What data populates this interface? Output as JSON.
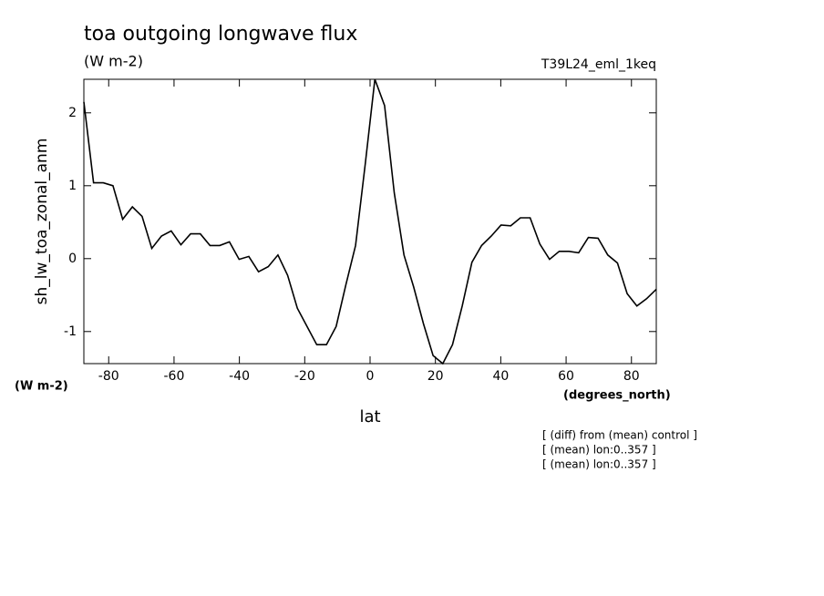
{
  "chart_data": {
    "type": "line",
    "title": "toa outgoing longwave flux",
    "subtitle": "(W m-2)",
    "experiment": "T39L24_eml_1keq",
    "y_label": "sh_lw_toa_zonal_anm",
    "y_units": "(W m-2)",
    "x_label": "lat",
    "x_units": "(degrees_north)",
    "notes": [
      "[ (diff) from (mean) control ]",
      "[ (mean) lon:0..357 ]",
      "[ (mean) lon:0..357 ]"
    ],
    "color": "#000000",
    "x": [
      -87.6,
      -84.63,
      -81.66,
      -78.69,
      -75.72,
      -72.75,
      -69.78,
      -66.81,
      -63.84,
      -60.87,
      -57.9,
      -54.93,
      -51.96,
      -48.99,
      -46.02,
      -43.05,
      -40.08,
      -37.11,
      -34.14,
      -31.17,
      -28.2,
      -25.23,
      -22.26,
      -19.29,
      -16.32,
      -13.35,
      -10.38,
      -7.41,
      -4.44,
      -1.47,
      1.47,
      4.44,
      7.41,
      10.38,
      13.35,
      16.32,
      19.29,
      22.26,
      25.23,
      28.2,
      31.17,
      34.14,
      37.11,
      40.08,
      43.05,
      46.02,
      48.99,
      51.96,
      54.93,
      57.9,
      60.87,
      63.84,
      66.81,
      69.78,
      72.75,
      75.72,
      78.69,
      81.66,
      84.63,
      87.6
    ],
    "values": [
      2.15,
      1.04,
      1.04,
      1.0,
      0.54,
      0.71,
      0.58,
      0.14,
      0.31,
      0.38,
      0.19,
      0.34,
      0.34,
      0.18,
      0.18,
      0.23,
      -0.01,
      0.03,
      -0.18,
      -0.11,
      0.05,
      -0.23,
      -0.68,
      -0.93,
      -1.18,
      -1.18,
      -0.93,
      -0.36,
      0.18,
      1.3,
      2.46,
      2.1,
      0.9,
      0.05,
      -0.39,
      -0.89,
      -1.33,
      -1.44,
      -1.18,
      -0.65,
      -0.05,
      0.18,
      0.31,
      0.46,
      0.45,
      0.56,
      0.56,
      0.2,
      -0.01,
      0.1,
      0.1,
      0.08,
      0.29,
      0.28,
      0.05,
      -0.06,
      -0.48,
      -0.65,
      -0.55,
      -0.42
    ],
    "xlim": [
      -87.6,
      87.6
    ],
    "ylim": [
      -1.44,
      2.46
    ],
    "xticks": [
      -80,
      -60,
      -40,
      -20,
      0,
      20,
      40,
      60,
      80
    ],
    "yticks": [
      -1,
      0,
      1,
      2
    ]
  }
}
